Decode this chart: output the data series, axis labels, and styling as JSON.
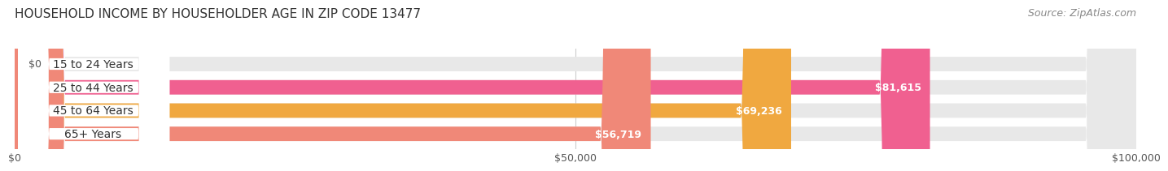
{
  "title": "HOUSEHOLD INCOME BY HOUSEHOLDER AGE IN ZIP CODE 13477",
  "source": "Source: ZipAtlas.com",
  "categories": [
    "15 to 24 Years",
    "25 to 44 Years",
    "45 to 64 Years",
    "65+ Years"
  ],
  "values": [
    0,
    81615,
    69236,
    56719
  ],
  "bar_colors": [
    "#a8a8d8",
    "#f06090",
    "#f0a840",
    "#f08878"
  ],
  "value_labels": [
    "$0",
    "$81,615",
    "$69,236",
    "$56,719"
  ],
  "xlabel_ticks": [
    0,
    50000,
    100000
  ],
  "xlabel_labels": [
    "$0",
    "$50,000",
    "$100,000"
  ],
  "xlim": [
    0,
    100000
  ],
  "title_fontsize": 11,
  "source_fontsize": 9,
  "label_fontsize": 10,
  "value_fontsize": 9,
  "tick_fontsize": 9,
  "background_color": "#ffffff",
  "bar_height": 0.62
}
